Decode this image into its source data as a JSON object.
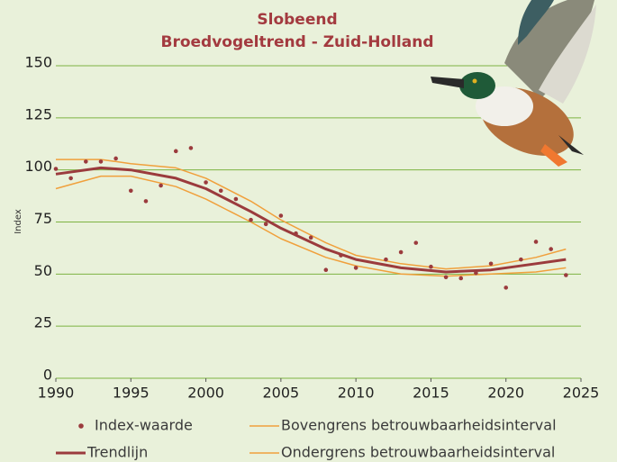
{
  "chart_data": {
    "type": "line",
    "title": "Slobeend",
    "subtitle": "Broedvogeltrend - Zuid-Holland",
    "y_label": "Index",
    "xlim": [
      1990,
      2025
    ],
    "xticks": [
      1990,
      1995,
      2000,
      2005,
      2010,
      2015,
      2020,
      2025
    ],
    "ylim": [
      0,
      150
    ],
    "yticks": [
      0,
      25,
      50,
      75,
      100,
      125,
      150
    ],
    "grid": true,
    "grid_color": "#7db342",
    "series": [
      {
        "name": "Index-waarde",
        "type": "scatter",
        "color": "#9b3b3d",
        "x": [
          1990,
          1991,
          1992,
          1993,
          1994,
          1995,
          1996,
          1997,
          1998,
          1999,
          2000,
          2001,
          2002,
          2003,
          2004,
          2005,
          2006,
          2007,
          2008,
          2009,
          2010,
          2012,
          2013,
          2014,
          2015,
          2016,
          2017,
          2018,
          2019,
          2020,
          2021,
          2022,
          2023,
          2024
        ],
        "values": [
          100.5,
          96,
          104,
          104,
          105.5,
          90,
          85,
          92.5,
          109,
          110.5,
          94,
          90,
          86,
          76,
          74,
          78,
          69.5,
          67.5,
          52,
          59,
          53,
          57,
          60.5,
          65,
          53.5,
          48.5,
          48,
          50.5,
          55,
          43.5,
          57,
          65.5,
          62,
          49.5
        ]
      },
      {
        "name": "Trendlijn",
        "type": "line",
        "color": "#9b3b3d",
        "width": 3,
        "x": [
          1990,
          1993,
          1995,
          1998,
          2000,
          2003,
          2005,
          2008,
          2010,
          2013,
          2016,
          2019,
          2022,
          2024
        ],
        "values": [
          98,
          101,
          100,
          96,
          91,
          80,
          72,
          62,
          57,
          53,
          51,
          52,
          55,
          57
        ]
      },
      {
        "name": "Bovengrens betrouwbaarheidsinterval",
        "type": "line",
        "color": "#f0a03c",
        "width": 1.5,
        "x": [
          1990,
          1993,
          1995,
          1998,
          2000,
          2003,
          2005,
          2008,
          2010,
          2013,
          2016,
          2019,
          2022,
          2024
        ],
        "values": [
          105,
          105,
          103,
          101,
          96,
          85,
          76,
          65,
          59,
          55,
          52.5,
          54,
          58,
          62
        ]
      },
      {
        "name": "Ondergrens betrouwbaarheidsinterval",
        "type": "line",
        "color": "#f0a03c",
        "width": 1.5,
        "x": [
          1990,
          1993,
          1995,
          1998,
          2000,
          2003,
          2005,
          2008,
          2010,
          2013,
          2016,
          2019,
          2022,
          2024
        ],
        "values": [
          91,
          97,
          97,
          92,
          86,
          75,
          67,
          58,
          54,
          50,
          49,
          50,
          51,
          53
        ]
      }
    ]
  }
}
